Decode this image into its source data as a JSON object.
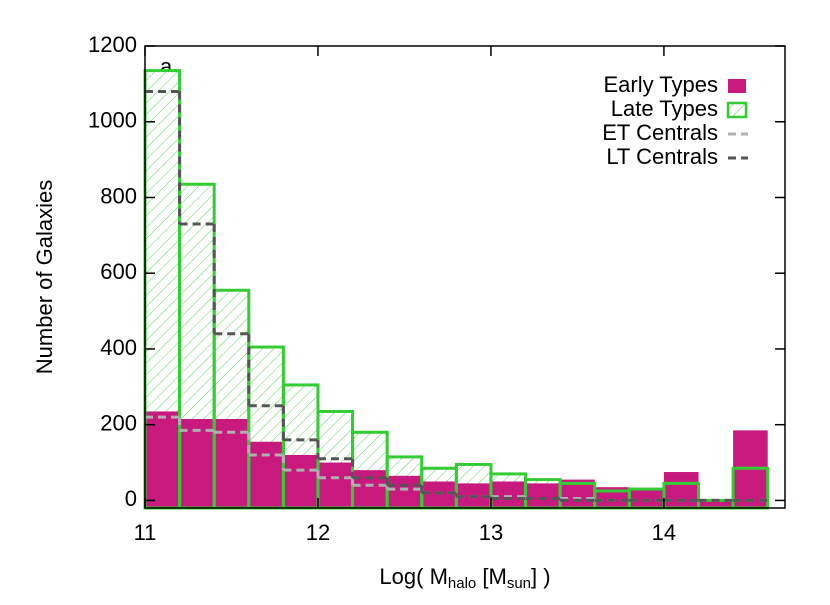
{
  "chart_data": {
    "type": "histogram",
    "ylabel": "Number of Galaxies",
    "xlabel_parts": [
      "Log( M",
      "halo",
      " [M",
      "sun",
      "] )"
    ],
    "annotation": "a",
    "bins": [
      11.0,
      11.2,
      11.4,
      11.6,
      11.8,
      12.0,
      12.2,
      12.4,
      12.6,
      12.8,
      13.0,
      13.2,
      13.4,
      13.6,
      13.8,
      14.0,
      14.2,
      14.4,
      14.6
    ],
    "xlim": [
      11,
      14.7
    ],
    "xticks": [
      11,
      12,
      13,
      14
    ],
    "ylim": [
      -20,
      1200
    ],
    "yticks": [
      0,
      200,
      400,
      600,
      800,
      1000,
      1200
    ],
    "legend": "top-right",
    "series": [
      {
        "name": "Early Types",
        "style": "filled",
        "color": "#c8197f",
        "values": [
          235,
          215,
          215,
          155,
          120,
          100,
          80,
          65,
          50,
          45,
          50,
          45,
          55,
          35,
          30,
          75,
          0,
          185
        ]
      },
      {
        "name": "Late Types",
        "style": "hatched",
        "color": "#33cc33",
        "values": [
          1135,
          835,
          555,
          405,
          305,
          235,
          180,
          115,
          85,
          95,
          70,
          55,
          45,
          25,
          30,
          45,
          0,
          85
        ]
      },
      {
        "name": "ET Centrals",
        "style": "dashed",
        "color": "#b0b0b0",
        "values": [
          220,
          185,
          180,
          120,
          80,
          60,
          40,
          30,
          20,
          10,
          10,
          5,
          5,
          0,
          0,
          0,
          0,
          0
        ]
      },
      {
        "name": "LT Centrals",
        "style": "dashed",
        "color": "#555555",
        "values": [
          1080,
          730,
          440,
          250,
          160,
          110,
          60,
          40,
          20,
          10,
          5,
          5,
          0,
          0,
          0,
          0,
          0,
          0
        ]
      }
    ]
  }
}
